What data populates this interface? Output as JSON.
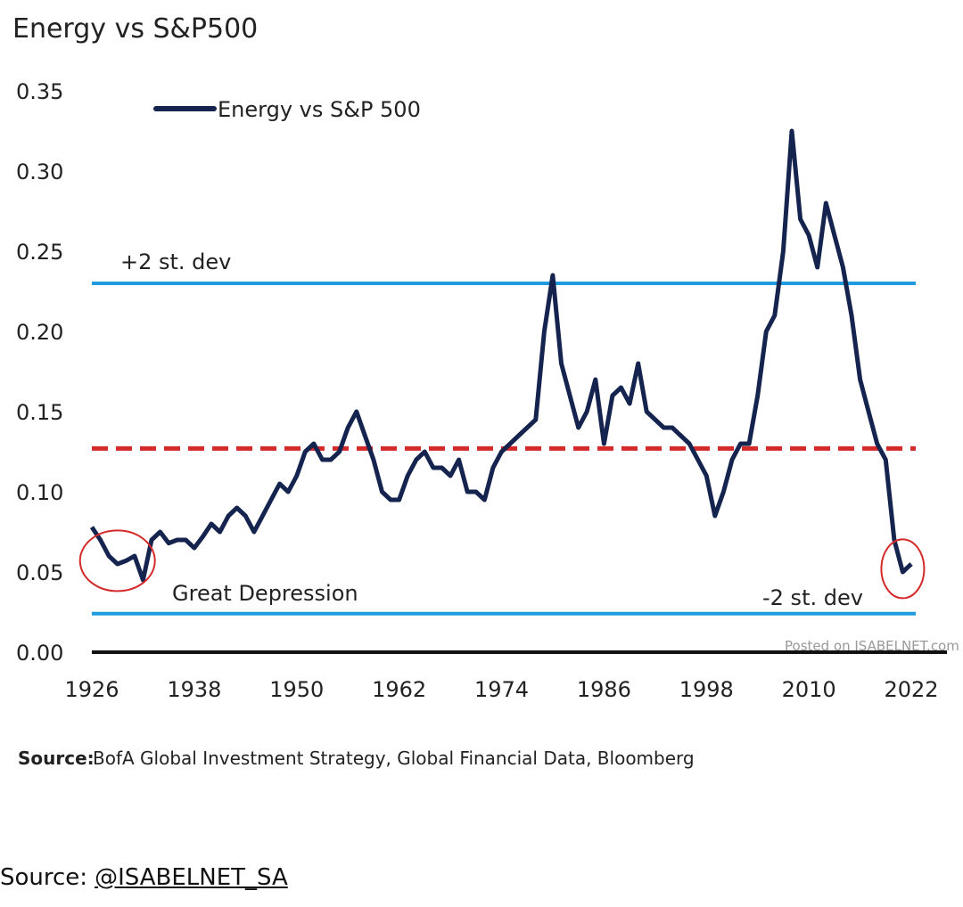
{
  "chart_data": {
    "type": "line",
    "title": "Energy vs S&P500",
    "legend": {
      "label": "Energy vs  S&P 500",
      "placement": "top-left"
    },
    "xlim": [
      1926,
      2022
    ],
    "ylim": [
      0,
      0.35
    ],
    "x_ticks": [
      "1926",
      "1938",
      "1950",
      "1962",
      "1974",
      "1986",
      "1998",
      "2010",
      "2022"
    ],
    "y_ticks": [
      "0.00",
      "0.05",
      "0.10",
      "0.15",
      "0.20",
      "0.25",
      "0.30",
      "0.35"
    ],
    "grid": false,
    "series": [
      {
        "name": "Energy vs  S&P 500",
        "color": "#14244f",
        "x": [
          1926,
          1927,
          1928,
          1929,
          1930,
          1931,
          1932,
          1933,
          1934,
          1935,
          1936,
          1937,
          1938,
          1939,
          1940,
          1941,
          1942,
          1943,
          1944,
          1945,
          1946,
          1947,
          1948,
          1949,
          1950,
          1951,
          1952,
          1953,
          1954,
          1955,
          1956,
          1957,
          1958,
          1959,
          1960,
          1961,
          1962,
          1963,
          1964,
          1965,
          1966,
          1967,
          1968,
          1969,
          1970,
          1971,
          1972,
          1973,
          1974,
          1975,
          1976,
          1977,
          1978,
          1979,
          1980,
          1981,
          1982,
          1983,
          1984,
          1985,
          1986,
          1987,
          1988,
          1989,
          1990,
          1991,
          1992,
          1993,
          1994,
          1995,
          1996,
          1997,
          1998,
          1999,
          2000,
          2001,
          2002,
          2003,
          2004,
          2005,
          2006,
          2007,
          2008,
          2009,
          2010,
          2011,
          2012,
          2013,
          2014,
          2015,
          2016,
          2017,
          2018,
          2019,
          2020,
          2021,
          2022
        ],
        "y": [
          0.078,
          0.07,
          0.06,
          0.055,
          0.057,
          0.06,
          0.045,
          0.07,
          0.075,
          0.068,
          0.07,
          0.07,
          0.065,
          0.072,
          0.08,
          0.075,
          0.085,
          0.09,
          0.085,
          0.075,
          0.085,
          0.095,
          0.105,
          0.1,
          0.11,
          0.125,
          0.13,
          0.12,
          0.12,
          0.125,
          0.14,
          0.15,
          0.135,
          0.12,
          0.1,
          0.095,
          0.095,
          0.11,
          0.12,
          0.125,
          0.115,
          0.115,
          0.11,
          0.12,
          0.1,
          0.1,
          0.095,
          0.115,
          0.125,
          0.13,
          0.135,
          0.14,
          0.145,
          0.2,
          0.235,
          0.18,
          0.16,
          0.14,
          0.15,
          0.17,
          0.13,
          0.16,
          0.165,
          0.155,
          0.18,
          0.15,
          0.145,
          0.14,
          0.14,
          0.135,
          0.13,
          0.12,
          0.11,
          0.085,
          0.1,
          0.12,
          0.13,
          0.13,
          0.16,
          0.2,
          0.21,
          0.25,
          0.325,
          0.27,
          0.26,
          0.24,
          0.28,
          0.26,
          0.24,
          0.21,
          0.17,
          0.15,
          0.13,
          0.12,
          0.07,
          0.05,
          0.055
        ]
      }
    ],
    "reference_lines": [
      {
        "label": "+2 st. dev",
        "value": 0.23,
        "color": "#1e9be0",
        "style": "solid"
      },
      {
        "label": "",
        "value": 0.127,
        "color": "#d42a2a",
        "style": "dashed"
      },
      {
        "label": "-2 st. dev",
        "value": 0.024,
        "color": "#1e9be0",
        "style": "solid"
      }
    ],
    "annotations": [
      {
        "label": "Great Depression",
        "x": 1931,
        "y": 0.055,
        "shape": "circle",
        "color": "#d42a2a"
      },
      {
        "label": "",
        "x": 2021,
        "y": 0.055,
        "shape": "circle",
        "color": "#d42a2a"
      }
    ],
    "watermark": "Posted on ISABELNET.com",
    "source_label": "Source:",
    "source_text": "BofA Global Investment Strategy, Global Financial Data, Bloomberg"
  },
  "footer": {
    "label": "Source:",
    "link": "@ISABELNET_SA"
  }
}
